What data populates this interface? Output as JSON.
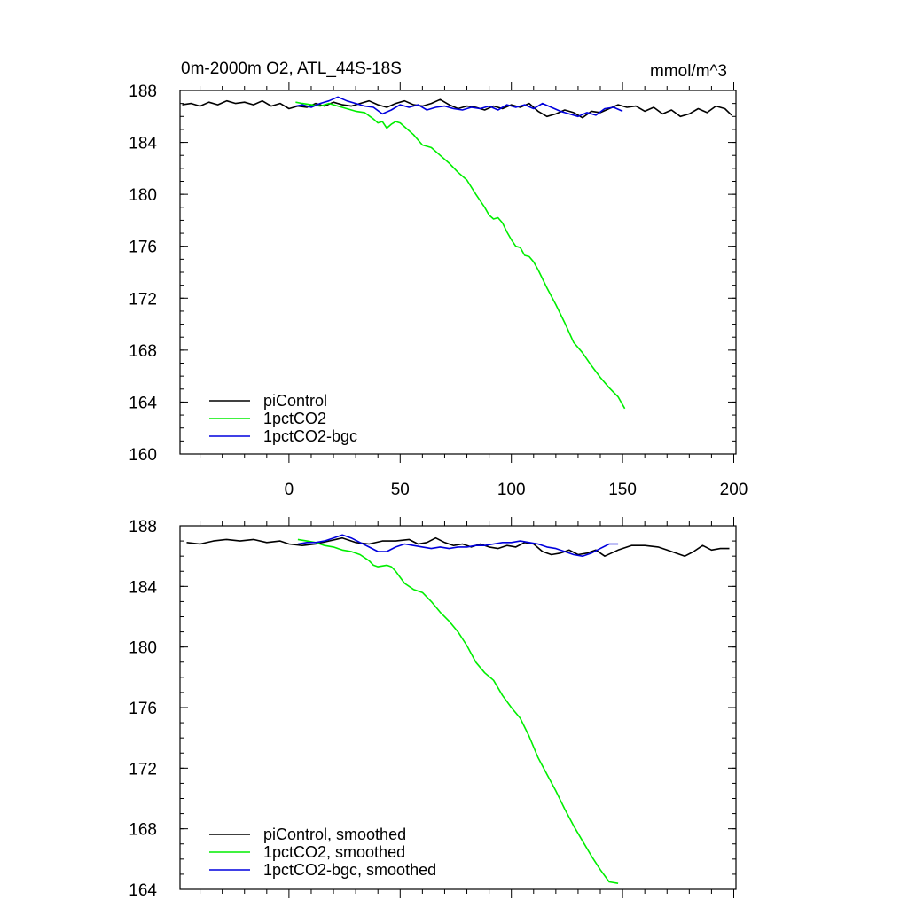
{
  "chart_data": [
    {
      "type": "line",
      "title": "0m-2000m O2, ATL_44S-18S",
      "units": "mmol/m^3",
      "xlim": [
        -49,
        201
      ],
      "ylim": [
        160,
        188
      ],
      "x_ticks": [
        0,
        50,
        100,
        150,
        200
      ],
      "x_tick_labels": [
        "0",
        "50",
        "100",
        "150",
        "200"
      ],
      "y_ticks": [
        160,
        164,
        168,
        172,
        176,
        180,
        184,
        188
      ],
      "y_tick_labels": [
        "160",
        "164",
        "168",
        "172",
        "176",
        "180",
        "184",
        "188"
      ],
      "grid": false,
      "legend_position": "bottom-left",
      "series": [
        {
          "name": "piControl",
          "color": "#000000",
          "x": [
            -48,
            -44,
            -40,
            -36,
            -32,
            -28,
            -24,
            -20,
            -16,
            -12,
            -8,
            -4,
            0,
            4,
            8,
            12,
            16,
            20,
            24,
            28,
            32,
            36,
            40,
            44,
            48,
            52,
            56,
            60,
            64,
            68,
            72,
            76,
            80,
            84,
            88,
            92,
            96,
            100,
            104,
            108,
            112,
            116,
            120,
            124,
            128,
            132,
            136,
            140,
            144,
            148,
            152,
            156,
            160,
            164,
            168,
            172,
            176,
            180,
            184,
            188,
            192,
            196,
            199
          ],
          "values": [
            186.9,
            187.0,
            186.8,
            187.1,
            186.9,
            187.2,
            187.0,
            187.1,
            186.9,
            187.2,
            186.8,
            187.0,
            186.6,
            186.8,
            186.7,
            187.0,
            186.8,
            187.1,
            186.9,
            186.8,
            187.0,
            187.2,
            186.9,
            186.7,
            187.0,
            187.2,
            186.9,
            186.8,
            187.0,
            187.3,
            186.9,
            186.6,
            186.8,
            186.7,
            186.5,
            186.8,
            186.6,
            186.9,
            186.7,
            187.0,
            186.4,
            186.0,
            186.2,
            186.5,
            186.3,
            185.9,
            186.4,
            186.3,
            186.6,
            186.9,
            186.7,
            186.8,
            186.4,
            186.7,
            186.2,
            186.5,
            186.0,
            186.2,
            186.6,
            186.3,
            186.8,
            186.6,
            186.1
          ]
        },
        {
          "name": "1pctCO2",
          "color": "#00ee00",
          "x": [
            3,
            6,
            10,
            14,
            18,
            22,
            26,
            30,
            34,
            38,
            40,
            42,
            44,
            46,
            48,
            50,
            52,
            56,
            60,
            64,
            68,
            72,
            76,
            80,
            84,
            88,
            90,
            92,
            94,
            96,
            98,
            100,
            102,
            104,
            106,
            108,
            110,
            112,
            116,
            120,
            124,
            128,
            132,
            136,
            140,
            144,
            148,
            151
          ],
          "values": [
            187.1,
            187.0,
            186.9,
            186.8,
            187.0,
            186.8,
            186.6,
            186.4,
            186.3,
            185.8,
            185.5,
            185.6,
            185.1,
            185.4,
            185.6,
            185.5,
            185.2,
            184.6,
            183.8,
            183.6,
            183.0,
            182.4,
            181.7,
            181.1,
            180.0,
            179.0,
            178.4,
            178.1,
            178.2,
            177.8,
            177.1,
            176.5,
            176.0,
            175.9,
            175.3,
            175.2,
            174.8,
            174.2,
            172.8,
            171.5,
            170.1,
            168.6,
            167.8,
            166.8,
            165.9,
            165.1,
            164.4,
            163.5
          ]
        },
        {
          "name": "1pctCO2-bgc",
          "color": "#0000dd",
          "x": [
            3,
            6,
            10,
            14,
            18,
            22,
            26,
            30,
            34,
            38,
            42,
            46,
            50,
            54,
            58,
            62,
            66,
            70,
            74,
            78,
            82,
            86,
            90,
            94,
            98,
            102,
            106,
            110,
            114,
            118,
            122,
            126,
            130,
            134,
            138,
            142,
            146,
            150
          ],
          "values": [
            186.8,
            186.9,
            186.7,
            187.0,
            187.2,
            187.5,
            187.2,
            187.0,
            186.8,
            186.7,
            186.2,
            186.5,
            186.9,
            186.7,
            186.9,
            186.5,
            186.7,
            186.8,
            186.6,
            186.5,
            186.7,
            186.6,
            186.8,
            186.5,
            186.9,
            186.7,
            186.9,
            186.6,
            187.0,
            186.7,
            186.4,
            186.2,
            186.0,
            186.3,
            186.1,
            186.6,
            186.7,
            186.4
          ]
        }
      ]
    },
    {
      "type": "line",
      "xlim": [
        -49,
        201
      ],
      "ylim": [
        164,
        188
      ],
      "x_ticks": [
        0,
        50,
        100,
        150,
        200
      ],
      "y_ticks": [
        164,
        168,
        172,
        176,
        180,
        184,
        188
      ],
      "y_tick_labels": [
        "164",
        "168",
        "172",
        "176",
        "180",
        "184",
        "188"
      ],
      "grid": false,
      "legend_position": "bottom-left",
      "series": [
        {
          "name": "piControl, smoothed",
          "color": "#000000",
          "x": [
            -46,
            -40,
            -34,
            -28,
            -22,
            -16,
            -10,
            -4,
            0,
            6,
            12,
            18,
            24,
            30,
            36,
            42,
            48,
            54,
            58,
            62,
            66,
            70,
            74,
            78,
            82,
            86,
            90,
            94,
            98,
            102,
            106,
            110,
            114,
            118,
            122,
            126,
            130,
            134,
            138,
            142,
            148,
            154,
            160,
            166,
            170,
            174,
            178,
            182,
            186,
            190,
            194,
            198
          ],
          "values": [
            186.9,
            186.8,
            187.0,
            187.1,
            187.0,
            187.1,
            186.9,
            187.0,
            186.8,
            186.7,
            186.8,
            187.0,
            187.2,
            186.9,
            186.8,
            187.0,
            187.0,
            187.1,
            186.8,
            186.9,
            187.2,
            186.9,
            186.7,
            186.8,
            186.6,
            186.8,
            186.6,
            186.5,
            186.7,
            186.6,
            186.9,
            186.8,
            186.3,
            186.1,
            186.2,
            186.4,
            186.1,
            186.2,
            186.4,
            186.0,
            186.4,
            186.7,
            186.7,
            186.6,
            186.4,
            186.2,
            186.0,
            186.3,
            186.7,
            186.4,
            186.5,
            186.5
          ]
        },
        {
          "name": "1pctCO2, smoothed",
          "color": "#00ee00",
          "x": [
            4,
            8,
            12,
            16,
            20,
            24,
            28,
            32,
            36,
            38,
            40,
            44,
            46,
            48,
            50,
            52,
            56,
            60,
            64,
            68,
            72,
            76,
            80,
            84,
            88,
            92,
            96,
            100,
            104,
            108,
            112,
            116,
            120,
            124,
            128,
            132,
            136,
            140,
            144,
            148
          ],
          "values": [
            187.1,
            187.0,
            186.9,
            186.7,
            186.6,
            186.4,
            186.3,
            186.1,
            185.7,
            185.4,
            185.3,
            185.4,
            185.3,
            185.0,
            184.6,
            184.2,
            183.8,
            183.6,
            183.0,
            182.3,
            181.7,
            181.0,
            180.1,
            179.0,
            178.3,
            177.8,
            176.8,
            176.0,
            175.3,
            174.1,
            172.7,
            171.6,
            170.5,
            169.3,
            168.2,
            167.2,
            166.2,
            165.3,
            164.5,
            164.4
          ]
        },
        {
          "name": "1pctCO2-bgc, smoothed",
          "color": "#0000dd",
          "x": [
            4,
            8,
            12,
            16,
            20,
            24,
            28,
            32,
            36,
            40,
            44,
            48,
            52,
            56,
            60,
            64,
            68,
            72,
            76,
            80,
            84,
            88,
            92,
            96,
            100,
            104,
            108,
            112,
            116,
            120,
            124,
            128,
            132,
            136,
            140,
            144,
            148
          ],
          "values": [
            186.8,
            186.9,
            186.9,
            187.0,
            187.2,
            187.4,
            187.2,
            186.9,
            186.6,
            186.3,
            186.3,
            186.6,
            186.8,
            186.7,
            186.6,
            186.5,
            186.6,
            186.5,
            186.6,
            186.6,
            186.7,
            186.7,
            186.8,
            186.9,
            186.9,
            187.0,
            186.9,
            186.8,
            186.6,
            186.5,
            186.3,
            186.1,
            186.0,
            186.2,
            186.5,
            186.8,
            186.8
          ]
        }
      ]
    }
  ]
}
